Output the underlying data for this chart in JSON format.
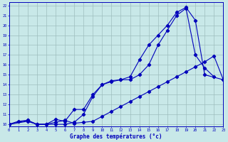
{
  "xlabel": "Graphe des températures (°c)",
  "bg_color": "#c8e8e8",
  "line_color": "#0000bb",
  "grid_color": "#9dbdbd",
  "xlim": [
    0,
    23
  ],
  "ylim": [
    9.8,
    22.3
  ],
  "xticks": [
    0,
    1,
    2,
    3,
    4,
    5,
    6,
    7,
    8,
    9,
    10,
    11,
    12,
    13,
    14,
    15,
    16,
    17,
    18,
    19,
    20,
    21,
    22,
    23
  ],
  "yticks": [
    10,
    11,
    12,
    13,
    14,
    15,
    16,
    17,
    18,
    19,
    20,
    21,
    22
  ],
  "line1_x": [
    0,
    2,
    3,
    4,
    5,
    6,
    7,
    8,
    9,
    10,
    11,
    12,
    13,
    14,
    15,
    16,
    17,
    18,
    19,
    20,
    21,
    23
  ],
  "line1_y": [
    10,
    10.4,
    10.0,
    10.0,
    10.5,
    10.3,
    11.5,
    11.5,
    13.0,
    14.0,
    14.4,
    14.5,
    14.8,
    16.5,
    18.0,
    19.0,
    20.0,
    21.3,
    21.8,
    20.5,
    15.0,
    14.5
  ],
  "line2_x": [
    0,
    2,
    3,
    4,
    5,
    6,
    7,
    8,
    9,
    10,
    11,
    12,
    13,
    14,
    15,
    16,
    17,
    18,
    19,
    20,
    21,
    22
  ],
  "line2_y": [
    10,
    10.3,
    10.0,
    10.0,
    10.0,
    10.0,
    10.2,
    11.0,
    12.8,
    14.0,
    14.3,
    14.5,
    14.5,
    15.0,
    16.0,
    18.0,
    19.5,
    21.0,
    21.7,
    17.0,
    15.7,
    14.8
  ],
  "line3_x": [
    0,
    1,
    2,
    3,
    4,
    5,
    6,
    7,
    8,
    9,
    10,
    11,
    12,
    13,
    14,
    15,
    16,
    17,
    18,
    19,
    20,
    21,
    22,
    23
  ],
  "line3_y": [
    10.0,
    10.3,
    10.4,
    10.0,
    10.0,
    10.2,
    10.4,
    10.1,
    10.2,
    10.3,
    10.8,
    11.3,
    11.8,
    12.3,
    12.8,
    13.3,
    13.8,
    14.3,
    14.8,
    15.3,
    15.8,
    16.3,
    16.9,
    14.5
  ]
}
